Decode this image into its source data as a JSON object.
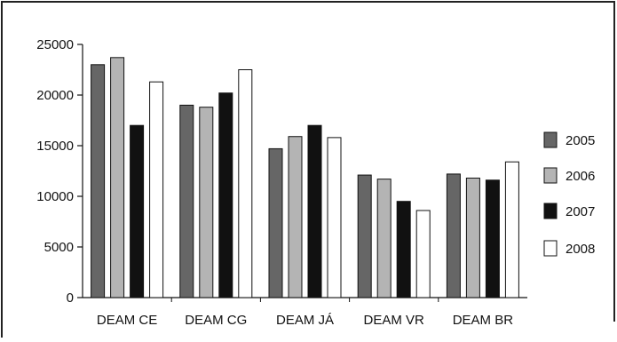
{
  "chart_data": {
    "type": "bar",
    "title": "",
    "xlabel": "",
    "ylabel": "",
    "ylim": [
      0,
      25000
    ],
    "y_ticks": [
      "0",
      "5000",
      "10000",
      "15000",
      "20000",
      "25000"
    ],
    "y_tick_values": [
      0,
      5000,
      10000,
      15000,
      20000,
      25000
    ],
    "grid": false,
    "legend_position": "right",
    "categories": [
      "DEAM CE",
      "DEAM CG",
      "DEAM JÁ",
      "DEAM VR",
      "DEAM BR"
    ],
    "series": [
      {
        "name": "2005",
        "color": "#666666",
        "values": [
          23000,
          19000,
          14700,
          12100,
          12200
        ]
      },
      {
        "name": "2006",
        "color": "#b4b4b4",
        "values": [
          23700,
          18800,
          15900,
          11700,
          11800
        ]
      },
      {
        "name": "2007",
        "color": "#111111",
        "values": [
          17000,
          20200,
          17000,
          9500,
          11600
        ]
      },
      {
        "name": "2008",
        "color": "#ffffff",
        "values": [
          21300,
          22500,
          15800,
          8600,
          13400
        ]
      }
    ]
  }
}
